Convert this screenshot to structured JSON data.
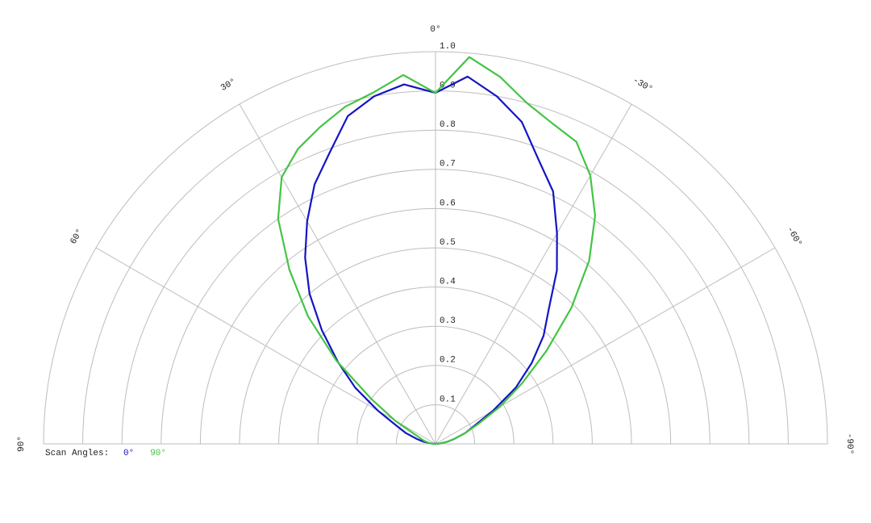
{
  "chart_data": {
    "type": "polar",
    "rlim": [
      0,
      1
    ],
    "rticks": [
      0.1,
      0.2,
      0.3,
      0.4,
      0.5,
      0.6,
      0.7,
      0.8,
      0.9,
      {
        "value": 1,
        "label": "1.0"
      }
    ],
    "angle_ticks": [
      {
        "value": 90,
        "label": "90°"
      },
      {
        "value": 60,
        "label": "60°"
      },
      {
        "value": 30,
        "label": "30°"
      },
      {
        "value": 0,
        "label": "0°"
      },
      {
        "value": -30,
        "label": "-30°"
      },
      {
        "value": -60,
        "label": "-60°"
      },
      {
        "value": -90,
        "label": "-90°"
      }
    ],
    "legend_title": "Scan Angles:",
    "x": [
      -90,
      -85,
      -80,
      -75,
      -70,
      -65,
      -60,
      -55,
      -50,
      -45,
      -40,
      -35,
      -30,
      -25,
      -20,
      -15,
      -10,
      -5,
      0,
      5,
      10,
      15,
      20,
      25,
      30,
      35,
      40,
      45,
      50,
      55,
      60,
      65,
      70,
      75,
      80,
      85,
      90
    ],
    "series": [
      {
        "name": "0°",
        "color": "#1414c4",
        "values": [
          0,
          0.01,
          0.03,
          0.05,
          0.08,
          0.11,
          0.17,
          0.25,
          0.32,
          0.39,
          0.45,
          0.54,
          0.62,
          0.71,
          0.77,
          0.85,
          0.9,
          0.94,
          0.895,
          0.92,
          0.9,
          0.865,
          0.79,
          0.73,
          0.655,
          0.58,
          0.5,
          0.41,
          0.325,
          0.25,
          0.17,
          0.11,
          0.08,
          0.05,
          0.03,
          0.01,
          0
        ]
      },
      {
        "name": "90°",
        "color": "#44c444",
        "values": [
          0,
          0.01,
          0.03,
          0.05,
          0.08,
          0.12,
          0.19,
          0.27,
          0.37,
          0.49,
          0.61,
          0.71,
          0.79,
          0.85,
          0.87,
          0.9,
          0.95,
          0.99,
          0.895,
          0.944,
          0.91,
          0.89,
          0.86,
          0.83,
          0.785,
          0.7,
          0.58,
          0.46,
          0.33,
          0.2,
          0.12,
          0.06,
          0.04,
          0.03,
          0.02,
          0.01,
          0
        ]
      }
    ]
  }
}
